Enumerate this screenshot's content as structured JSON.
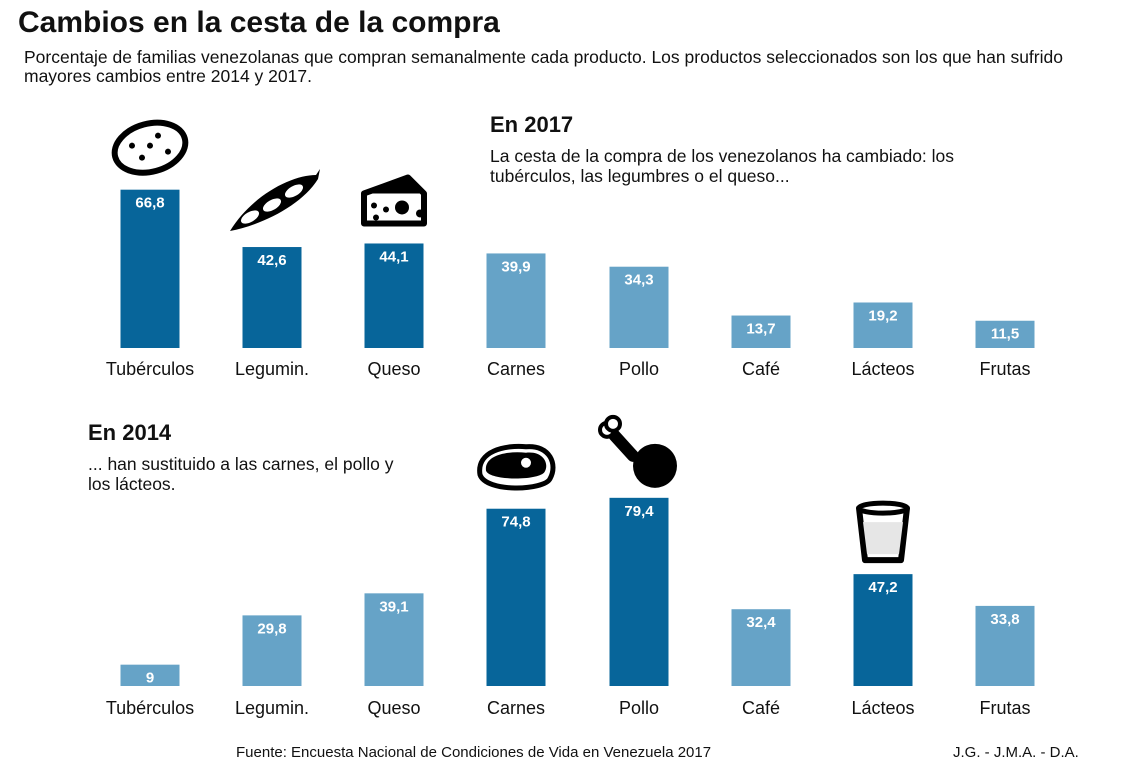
{
  "title": "Cambios en la cesta de la compra",
  "subtitle": "Porcentaje de familias venezolanas que compran semanalmente cada producto. Los productos seleccionados son los que han sufrido mayores cambios entre 2014 y 2017.",
  "source": "Fuente: Encuesta Nacional de Condiciones de Vida en Venezuela 2017",
  "credit": "J.G. - J.M.A. - D.A.",
  "colors": {
    "highlight": "#07659a",
    "normal": "#66a3c7",
    "label_text": "#ffffff"
  },
  "chart_data": [
    {
      "type": "bar",
      "title": "En 2017",
      "annotation": "La cesta de la compra de los venezolanos ha cambiado: los tubérculos, las legumbres o el queso...",
      "categories": [
        "Tubérculos",
        "Legumin.",
        "Queso",
        "Carnes",
        "Pollo",
        "Café",
        "Lácteos",
        "Frutas"
      ],
      "values": [
        66.8,
        42.6,
        44.1,
        39.9,
        34.3,
        13.7,
        19.2,
        11.5
      ],
      "value_labels": [
        "66,8",
        "42,6",
        "44,1",
        "39,9",
        "34,3",
        "13,7",
        "19,2",
        "11,5"
      ],
      "highlighted": [
        true,
        true,
        true,
        false,
        false,
        false,
        false,
        false
      ],
      "icons": [
        "potato-icon",
        "bean-pod-icon",
        "cheese-icon",
        null,
        null,
        null,
        null,
        null
      ],
      "ylim": [
        0,
        80
      ],
      "grid": false
    },
    {
      "type": "bar",
      "title": "En 2014",
      "annotation": "... han sustituido a las carnes, el pollo y los lácteos.",
      "categories": [
        "Tubérculos",
        "Legumin.",
        "Queso",
        "Carnes",
        "Pollo",
        "Café",
        "Lácteos",
        "Frutas"
      ],
      "values": [
        9,
        29.8,
        39.1,
        74.8,
        79.4,
        32.4,
        47.2,
        33.8
      ],
      "value_labels": [
        "9",
        "29,8",
        "39,1",
        "74,8",
        "79,4",
        "32,4",
        "47,2",
        "33,8"
      ],
      "highlighted": [
        false,
        false,
        false,
        true,
        true,
        false,
        true,
        false
      ],
      "icons": [
        null,
        null,
        null,
        "steak-icon",
        "chicken-leg-icon",
        null,
        "milk-glass-icon",
        null
      ],
      "ylim": [
        0,
        80
      ],
      "grid": false
    }
  ]
}
